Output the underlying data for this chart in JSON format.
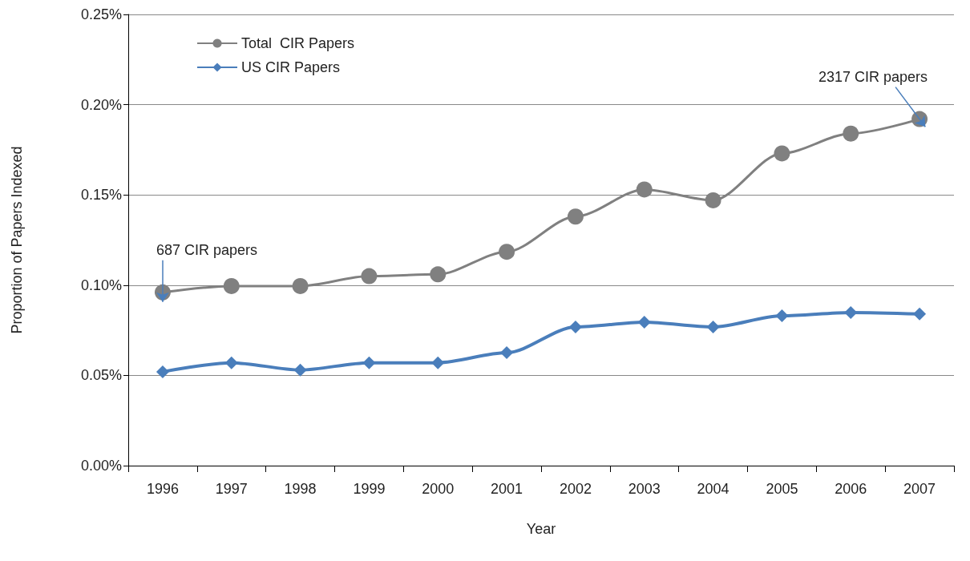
{
  "chart_data": {
    "type": "line",
    "xlabel": "Year",
    "ylabel": "Proportion of Papers Indexed",
    "categories": [
      "1996",
      "1997",
      "1998",
      "1999",
      "2000",
      "2001",
      "2002",
      "2003",
      "2004",
      "2005",
      "2006",
      "2007"
    ],
    "series": [
      {
        "name": "Total  CIR Papers",
        "color": "#808080",
        "marker": "circle",
        "values": [
          0.096,
          0.0995,
          0.0995,
          0.105,
          0.106,
          0.1185,
          0.138,
          0.153,
          0.147,
          0.173,
          0.184,
          0.192
        ]
      },
      {
        "name": "US CIR Papers",
        "color": "#4a7ebb",
        "marker": "diamond",
        "values": [
          0.052,
          0.057,
          0.053,
          0.057,
          0.057,
          0.0626,
          0.0768,
          0.0795,
          0.0768,
          0.083,
          0.0848,
          0.084
        ]
      }
    ],
    "ylim": [
      0,
      0.25
    ],
    "yticks": [
      {
        "value": 0,
        "label": "0.00%"
      },
      {
        "value": 0.05,
        "label": "0.05%"
      },
      {
        "value": 0.1,
        "label": "0.10%"
      },
      {
        "value": 0.15,
        "label": "0.15%"
      },
      {
        "value": 0.2,
        "label": "0.20%"
      },
      {
        "value": 0.25,
        "label": "0.25%"
      }
    ],
    "grid": "y",
    "legend": "top left",
    "annotations": [
      {
        "text": "687 CIR papers",
        "x": "1996",
        "y": 0.096
      },
      {
        "text": "2317 CIR papers",
        "x": "2007",
        "y": 0.192
      }
    ]
  }
}
